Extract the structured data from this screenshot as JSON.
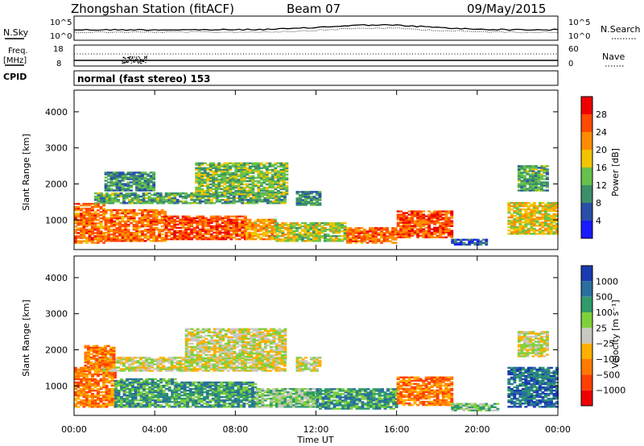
{
  "header": {
    "station": "Zhongshan Station (fitACF)",
    "beam": "Beam 07",
    "date": "09/May/2015"
  },
  "sky_panel": {
    "left_label": "N.Sky",
    "right_label": "N.Search",
    "y_top": "10^5",
    "y_bottom": "10^0",
    "y_top_right": "10^5",
    "y_bottom_right": "10^0"
  },
  "freq_panel": {
    "left_label_1": "Freq.",
    "left_label_2": "[MHz]",
    "y_top_left": "18",
    "y_bottom_left": "8",
    "y_top_right": "60",
    "y_bottom_right": "0",
    "right_label": "Nave"
  },
  "cpid": {
    "label": "CPID",
    "value": "normal (fast stereo) 153"
  },
  "chart_data": [
    {
      "type": "heatmap",
      "name_key": "power",
      "ylabel": "Slant Range [km]",
      "xlabel": "Time UT",
      "ylim": [
        180,
        4600
      ],
      "yticks": [
        "1000",
        "2000",
        "3000",
        "4000"
      ],
      "ytick_values": [
        1000,
        2000,
        3000,
        4000
      ],
      "colorbar": {
        "label": "Power [dB]",
        "ticks": [
          "4",
          "8",
          "12",
          "16",
          "20",
          "24",
          "28"
        ],
        "tick_values": [
          4,
          8,
          12,
          16,
          20,
          24,
          28
        ],
        "colors": [
          "#1a1aff",
          "#2a4fa8",
          "#3d8f6a",
          "#66c24a",
          "#f2c400",
          "#ff8c00",
          "#ff4a00",
          "#ee0000"
        ]
      },
      "blobs": [
        {
          "t0": 0.0,
          "t1": 1.5,
          "r0": 350,
          "r1": 1450,
          "v": 24
        },
        {
          "t0": 1.5,
          "t1": 4.5,
          "r0": 400,
          "r1": 1300,
          "v": 24
        },
        {
          "t0": 4.5,
          "t1": 8.5,
          "r0": 450,
          "r1": 1100,
          "v": 26
        },
        {
          "t0": 8.5,
          "t1": 10.0,
          "r0": 450,
          "r1": 1000,
          "v": 20
        },
        {
          "t0": 10.0,
          "t1": 13.5,
          "r0": 400,
          "r1": 900,
          "v": 16
        },
        {
          "t0": 13.5,
          "t1": 16.0,
          "r0": 350,
          "r1": 800,
          "v": 24
        },
        {
          "t0": 16.0,
          "t1": 18.7,
          "r0": 500,
          "r1": 1250,
          "v": 26
        },
        {
          "t0": 18.7,
          "t1": 20.5,
          "r0": 300,
          "r1": 450,
          "v": 6
        },
        {
          "t0": 21.5,
          "t1": 24.0,
          "r0": 600,
          "r1": 1500,
          "v": 18
        },
        {
          "t0": 1.0,
          "t1": 10.5,
          "r0": 1450,
          "r1": 1750,
          "v": 12
        },
        {
          "t0": 6.0,
          "t1": 10.5,
          "r0": 1700,
          "r1": 2600,
          "v": 14
        },
        {
          "t0": 1.5,
          "t1": 4.0,
          "r0": 1800,
          "r1": 2300,
          "v": 10
        },
        {
          "t0": 11.0,
          "t1": 12.2,
          "r0": 1400,
          "r1": 1800,
          "v": 9
        },
        {
          "t0": 22.0,
          "t1": 23.5,
          "r0": 1800,
          "r1": 2500,
          "v": 12
        }
      ]
    },
    {
      "type": "heatmap",
      "name_key": "velocity",
      "ylabel": "Slant Range [km]",
      "xlabel": "Time UT",
      "ylim": [
        180,
        4600
      ],
      "yticks": [
        "1000",
        "2000",
        "3000",
        "4000"
      ],
      "ytick_values": [
        1000,
        2000,
        3000,
        4000
      ],
      "colorbar": {
        "label": "Velocity [m s⁻¹]",
        "ticks": [
          "1000",
          "500",
          "100",
          "25",
          "−25",
          "−100",
          "−500",
          "−1000"
        ],
        "colors": [
          "#1a3ab0",
          "#2a6e9e",
          "#2f9a6a",
          "#7fd13b",
          "#c9c8c0",
          "#ffb000",
          "#ff7a00",
          "#ff4000",
          "#ee0000"
        ]
      },
      "blobs": [
        {
          "t0": 0.0,
          "t1": 2.0,
          "r0": 400,
          "r1": 1500,
          "c": 6
        },
        {
          "t0": 2.0,
          "t1": 5.0,
          "r0": 400,
          "r1": 1200,
          "c": 2
        },
        {
          "t0": 5.0,
          "t1": 9.0,
          "r0": 400,
          "r1": 1100,
          "c": 2
        },
        {
          "t0": 9.0,
          "t1": 12.0,
          "r0": 400,
          "r1": 900,
          "c": 3
        },
        {
          "t0": 12.0,
          "t1": 16.0,
          "r0": 350,
          "r1": 900,
          "c": 2
        },
        {
          "t0": 16.0,
          "t1": 18.7,
          "r0": 450,
          "r1": 1250,
          "c": 6
        },
        {
          "t0": 18.7,
          "t1": 21.0,
          "r0": 300,
          "r1": 500,
          "c": 3
        },
        {
          "t0": 21.5,
          "t1": 24.0,
          "r0": 400,
          "r1": 1500,
          "c": 1
        },
        {
          "t0": 1.0,
          "t1": 10.5,
          "r0": 1400,
          "r1": 1800,
          "c": 4
        },
        {
          "t0": 5.5,
          "t1": 10.5,
          "r0": 1700,
          "r1": 2600,
          "c": 4
        },
        {
          "t0": 0.5,
          "t1": 2.0,
          "r0": 1500,
          "r1": 2100,
          "c": 6
        },
        {
          "t0": 11.0,
          "t1": 12.2,
          "r0": 1400,
          "r1": 1800,
          "c": 4
        },
        {
          "t0": 22.0,
          "t1": 23.5,
          "r0": 1800,
          "r1": 2500,
          "c": 4
        }
      ]
    }
  ],
  "x_axis": {
    "label": "Time UT",
    "ticks": [
      "00:00",
      "04:00",
      "08:00",
      "12:00",
      "16:00",
      "20:00",
      "00:00"
    ],
    "tick_hours": [
      0,
      4,
      8,
      12,
      16,
      20,
      24
    ]
  }
}
